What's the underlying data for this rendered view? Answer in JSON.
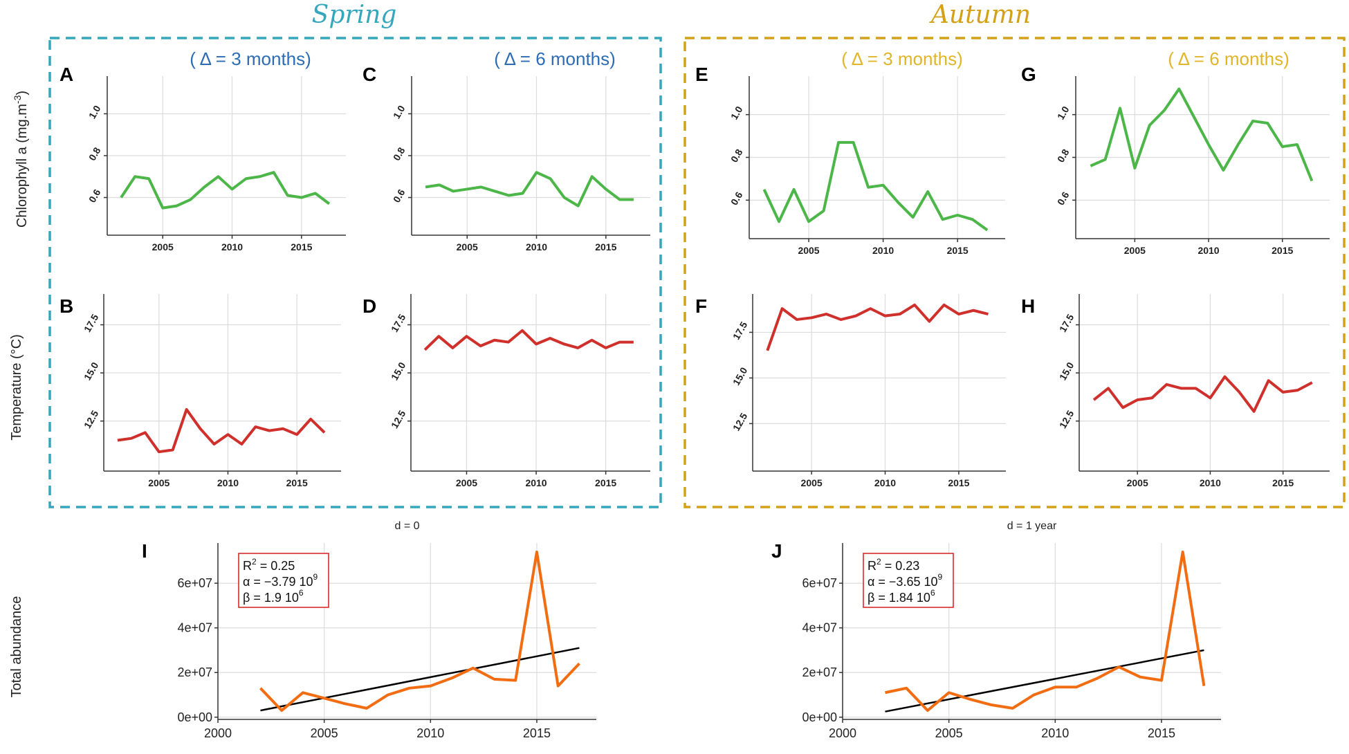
{
  "headers": {
    "spring": "Spring",
    "autumn": "Autumn",
    "spring_color": "#35a7bd",
    "autumn_color": "#d4a017"
  },
  "y_labels": {
    "chl_prefix": "Chlorophyll a (mg.m",
    "chl_exp": "-3",
    "chl_suffix": ")",
    "temp": "Temperature (°C)",
    "abund": "Total abundance"
  },
  "colors": {
    "chl": "#4cb748",
    "temp": "#d0302b",
    "abund": "#f26c12",
    "trend": "#000000",
    "statbox": "#d92a2a",
    "delta_spring": "#2b6cb4",
    "delta_autumn": "#e0b52a"
  },
  "chart_data": [
    {
      "id": "A",
      "type": "line",
      "letter": "A",
      "delta": "( Δ = 3 months)",
      "season": "spring",
      "variable": "chl",
      "x": [
        2002,
        2003,
        2004,
        2005,
        2006,
        2007,
        2008,
        2009,
        2010,
        2011,
        2012,
        2013,
        2014,
        2015,
        2016,
        2017
      ],
      "values": [
        0.6,
        0.7,
        0.69,
        0.55,
        0.56,
        0.59,
        0.65,
        0.7,
        0.64,
        0.69,
        0.7,
        0.72,
        0.61,
        0.6,
        0.62,
        0.57
      ],
      "xlim": [
        2001,
        2018.2
      ],
      "ylim": [
        0.42,
        1.18
      ],
      "xticks": [
        2005,
        2010,
        2015
      ],
      "xtick_labels": [
        "2005",
        "2010",
        "2015"
      ],
      "yticks": [
        0.6,
        0.8,
        1.0
      ],
      "ytick_labels": [
        "0.6",
        "0.8",
        "1.0"
      ]
    },
    {
      "id": "C",
      "type": "line",
      "letter": "C",
      "delta": "( Δ = 6 months)",
      "season": "spring",
      "variable": "chl",
      "x": [
        2002,
        2003,
        2004,
        2005,
        2006,
        2007,
        2008,
        2009,
        2010,
        2011,
        2012,
        2013,
        2014,
        2015,
        2016,
        2017
      ],
      "values": [
        0.65,
        0.66,
        0.63,
        0.64,
        0.65,
        0.63,
        0.61,
        0.62,
        0.72,
        0.69,
        0.6,
        0.56,
        0.7,
        0.64,
        0.59,
        0.59
      ],
      "xlim": [
        2001,
        2018.2
      ],
      "ylim": [
        0.42,
        1.18
      ],
      "xticks": [
        2005,
        2010,
        2015
      ],
      "xtick_labels": [
        "2005",
        "2010",
        "2015"
      ],
      "yticks": [
        0.6,
        0.8,
        1.0
      ],
      "ytick_labels": [
        "0.6",
        "0.8",
        "1.0"
      ]
    },
    {
      "id": "E",
      "type": "line",
      "letter": "E",
      "delta": "( Δ = 3 months)",
      "season": "autumn",
      "variable": "chl",
      "x": [
        2002,
        2003,
        2004,
        2005,
        2006,
        2007,
        2008,
        2009,
        2010,
        2011,
        2012,
        2013,
        2014,
        2015,
        2016,
        2017
      ],
      "values": [
        0.65,
        0.5,
        0.65,
        0.5,
        0.55,
        0.87,
        0.87,
        0.66,
        0.67,
        0.59,
        0.52,
        0.64,
        0.51,
        0.53,
        0.51,
        0.46
      ],
      "xlim": [
        2001,
        2018.2
      ],
      "ylim": [
        0.42,
        1.18
      ],
      "xticks": [
        2005,
        2010,
        2015
      ],
      "xtick_labels": [
        "2005",
        "2010",
        "2015"
      ],
      "yticks": [
        0.6,
        0.8,
        1.0
      ],
      "ytick_labels": [
        "0.6",
        "0.8",
        "1.0"
      ]
    },
    {
      "id": "G",
      "type": "line",
      "letter": "G",
      "delta": "( Δ = 6 months)",
      "season": "autumn",
      "variable": "chl",
      "x": [
        2002,
        2003,
        2004,
        2005,
        2006,
        2007,
        2008,
        2009,
        2010,
        2011,
        2012,
        2013,
        2014,
        2015,
        2016,
        2017
      ],
      "values": [
        0.76,
        0.79,
        1.03,
        0.75,
        0.95,
        1.02,
        1.12,
        0.99,
        0.86,
        0.74,
        0.86,
        0.97,
        0.96,
        0.85,
        0.86,
        0.69
      ],
      "xlim": [
        2001,
        2018.2
      ],
      "ylim": [
        0.42,
        1.18
      ],
      "xticks": [
        2005,
        2010,
        2015
      ],
      "xtick_labels": [
        "2005",
        "2010",
        "2015"
      ],
      "yticks": [
        0.6,
        0.8,
        1.0
      ],
      "ytick_labels": [
        "0.6",
        "0.8",
        "1.0"
      ]
    },
    {
      "id": "B",
      "type": "line",
      "letter": "B",
      "season": "spring",
      "variable": "temp",
      "x": [
        2002,
        2003,
        2004,
        2005,
        2006,
        2007,
        2008,
        2009,
        2010,
        2011,
        2012,
        2013,
        2014,
        2015,
        2016,
        2017
      ],
      "values": [
        11.5,
        11.6,
        11.9,
        10.9,
        11.0,
        13.1,
        12.1,
        11.3,
        11.8,
        11.3,
        12.2,
        12.0,
        12.1,
        11.8,
        12.6,
        11.9
      ],
      "xlim": [
        2001,
        2018.2
      ],
      "ylim": [
        9.9,
        19.1
      ],
      "xticks": [
        2005,
        2010,
        2015
      ],
      "xtick_labels": [
        "2005",
        "2010",
        "2015"
      ],
      "yticks": [
        12.5,
        15.0,
        17.5
      ],
      "ytick_labels": [
        "12.5",
        "15.0",
        "17.5"
      ]
    },
    {
      "id": "D",
      "type": "line",
      "letter": "D",
      "season": "spring",
      "variable": "temp",
      "x": [
        2002,
        2003,
        2004,
        2005,
        2006,
        2007,
        2008,
        2009,
        2010,
        2011,
        2012,
        2013,
        2014,
        2015,
        2016,
        2017
      ],
      "values": [
        16.2,
        16.9,
        16.3,
        16.9,
        16.4,
        16.7,
        16.6,
        17.2,
        16.5,
        16.8,
        16.5,
        16.3,
        16.7,
        16.3,
        16.6,
        16.6
      ],
      "xlim": [
        2001,
        2018.2
      ],
      "ylim": [
        9.9,
        19.1
      ],
      "xticks": [
        2005,
        2010,
        2015
      ],
      "xtick_labels": [
        "2005",
        "2010",
        "2015"
      ],
      "yticks": [
        12.5,
        15.0,
        17.5
      ],
      "ytick_labels": [
        "12.5",
        "15.0",
        "17.5"
      ]
    },
    {
      "id": "F",
      "type": "line",
      "letter": "F",
      "season": "autumn",
      "variable": "temp",
      "x": [
        2002,
        2003,
        2004,
        2005,
        2006,
        2007,
        2008,
        2009,
        2010,
        2011,
        2012,
        2013,
        2014,
        2015,
        2016,
        2017
      ],
      "values": [
        16.5,
        18.8,
        18.2,
        18.3,
        18.5,
        18.2,
        18.4,
        18.8,
        18.4,
        18.5,
        19.0,
        18.1,
        19.0,
        18.5,
        18.7,
        18.5
      ],
      "xlim": [
        2001,
        2018.2
      ],
      "ylim": [
        9.9,
        19.6
      ],
      "xticks": [
        2005,
        2010,
        2015
      ],
      "xtick_labels": [
        "2005",
        "2010",
        "2015"
      ],
      "yticks": [
        12.5,
        15.0,
        17.5
      ],
      "ytick_labels": [
        "12.5",
        "15.0",
        "17.5"
      ]
    },
    {
      "id": "H",
      "type": "line",
      "letter": "H",
      "season": "autumn",
      "variable": "temp",
      "x": [
        2002,
        2003,
        2004,
        2005,
        2006,
        2007,
        2008,
        2009,
        2010,
        2011,
        2012,
        2013,
        2014,
        2015,
        2016,
        2017
      ],
      "values": [
        13.6,
        14.2,
        13.2,
        13.6,
        13.7,
        14.4,
        14.2,
        14.2,
        13.7,
        14.8,
        14.0,
        13.0,
        14.6,
        14.0,
        14.1,
        14.5
      ],
      "xlim": [
        2001,
        2018.2
      ],
      "ylim": [
        9.9,
        19.1
      ],
      "xticks": [
        2005,
        2010,
        2015
      ],
      "xtick_labels": [
        "2005",
        "2010",
        "2015"
      ],
      "yticks": [
        12.5,
        15.0,
        17.5
      ],
      "ytick_labels": [
        "12.5",
        "15.0",
        "17.5"
      ]
    },
    {
      "id": "I",
      "type": "line",
      "letter": "I",
      "title": "d = 0",
      "variable": "abund",
      "x": [
        2002,
        2003,
        2004,
        2005,
        2006,
        2007,
        2008,
        2009,
        2010,
        2011,
        2012,
        2013,
        2014,
        2015,
        2016,
        2017
      ],
      "values": [
        13000000,
        3000000,
        11000000,
        8500000,
        6000000,
        4000000,
        10000000,
        13000000,
        14000000,
        17500000,
        22000000,
        17000000,
        16500000,
        74000000,
        14000000,
        24000000
      ],
      "trend": {
        "x": [
          2002,
          2017
        ],
        "y": [
          3000000,
          31000000
        ]
      },
      "stats": {
        "r2_label": "R",
        "r2_exp": "2",
        "r2_value": " = 0.25",
        "alpha_label": "α = −3.79 10",
        "alpha_exp": "9",
        "beta_label": "β = 1.9 10",
        "beta_exp": "6"
      },
      "xlim": [
        2000,
        2017.8
      ],
      "ylim": [
        -1000000,
        78000000
      ],
      "xticks": [
        2000,
        2005,
        2010,
        2015
      ],
      "xtick_labels": [
        "2000",
        "2005",
        "2010",
        "2015"
      ],
      "yticks": [
        0,
        20000000,
        40000000,
        60000000
      ],
      "ytick_labels": [
        "0e+00",
        "2e+07",
        "4e+07",
        "6e+07"
      ]
    },
    {
      "id": "J",
      "type": "line",
      "letter": "J",
      "title": "d = 1 year",
      "variable": "abund",
      "x": [
        2002,
        2003,
        2004,
        2005,
        2006,
        2007,
        2008,
        2009,
        2010,
        2011,
        2012,
        2013,
        2014,
        2015,
        2016,
        2017
      ],
      "values": [
        11000000,
        13000000,
        3000000,
        11000000,
        8000000,
        5500000,
        4000000,
        10000000,
        13500000,
        13500000,
        17500000,
        22500000,
        18000000,
        16500000,
        74000000,
        14000000
      ],
      "trend": {
        "x": [
          2002,
          2017
        ],
        "y": [
          2500000,
          30000000
        ]
      },
      "stats": {
        "r2_label": "R",
        "r2_exp": "2",
        "r2_value": " = 0.23",
        "alpha_label": "α = −3.65 10",
        "alpha_exp": "9",
        "beta_label": "β = 1.84 10",
        "beta_exp": "6"
      },
      "xlim": [
        2000,
        2017.8
      ],
      "ylim": [
        -1000000,
        78000000
      ],
      "xticks": [
        2000,
        2005,
        2010,
        2015
      ],
      "xtick_labels": [
        "2000",
        "2005",
        "2010",
        "2015"
      ],
      "yticks": [
        0,
        20000000,
        40000000,
        60000000
      ],
      "ytick_labels": [
        "0e+00",
        "2e+07",
        "4e+07",
        "6e+07"
      ]
    }
  ]
}
